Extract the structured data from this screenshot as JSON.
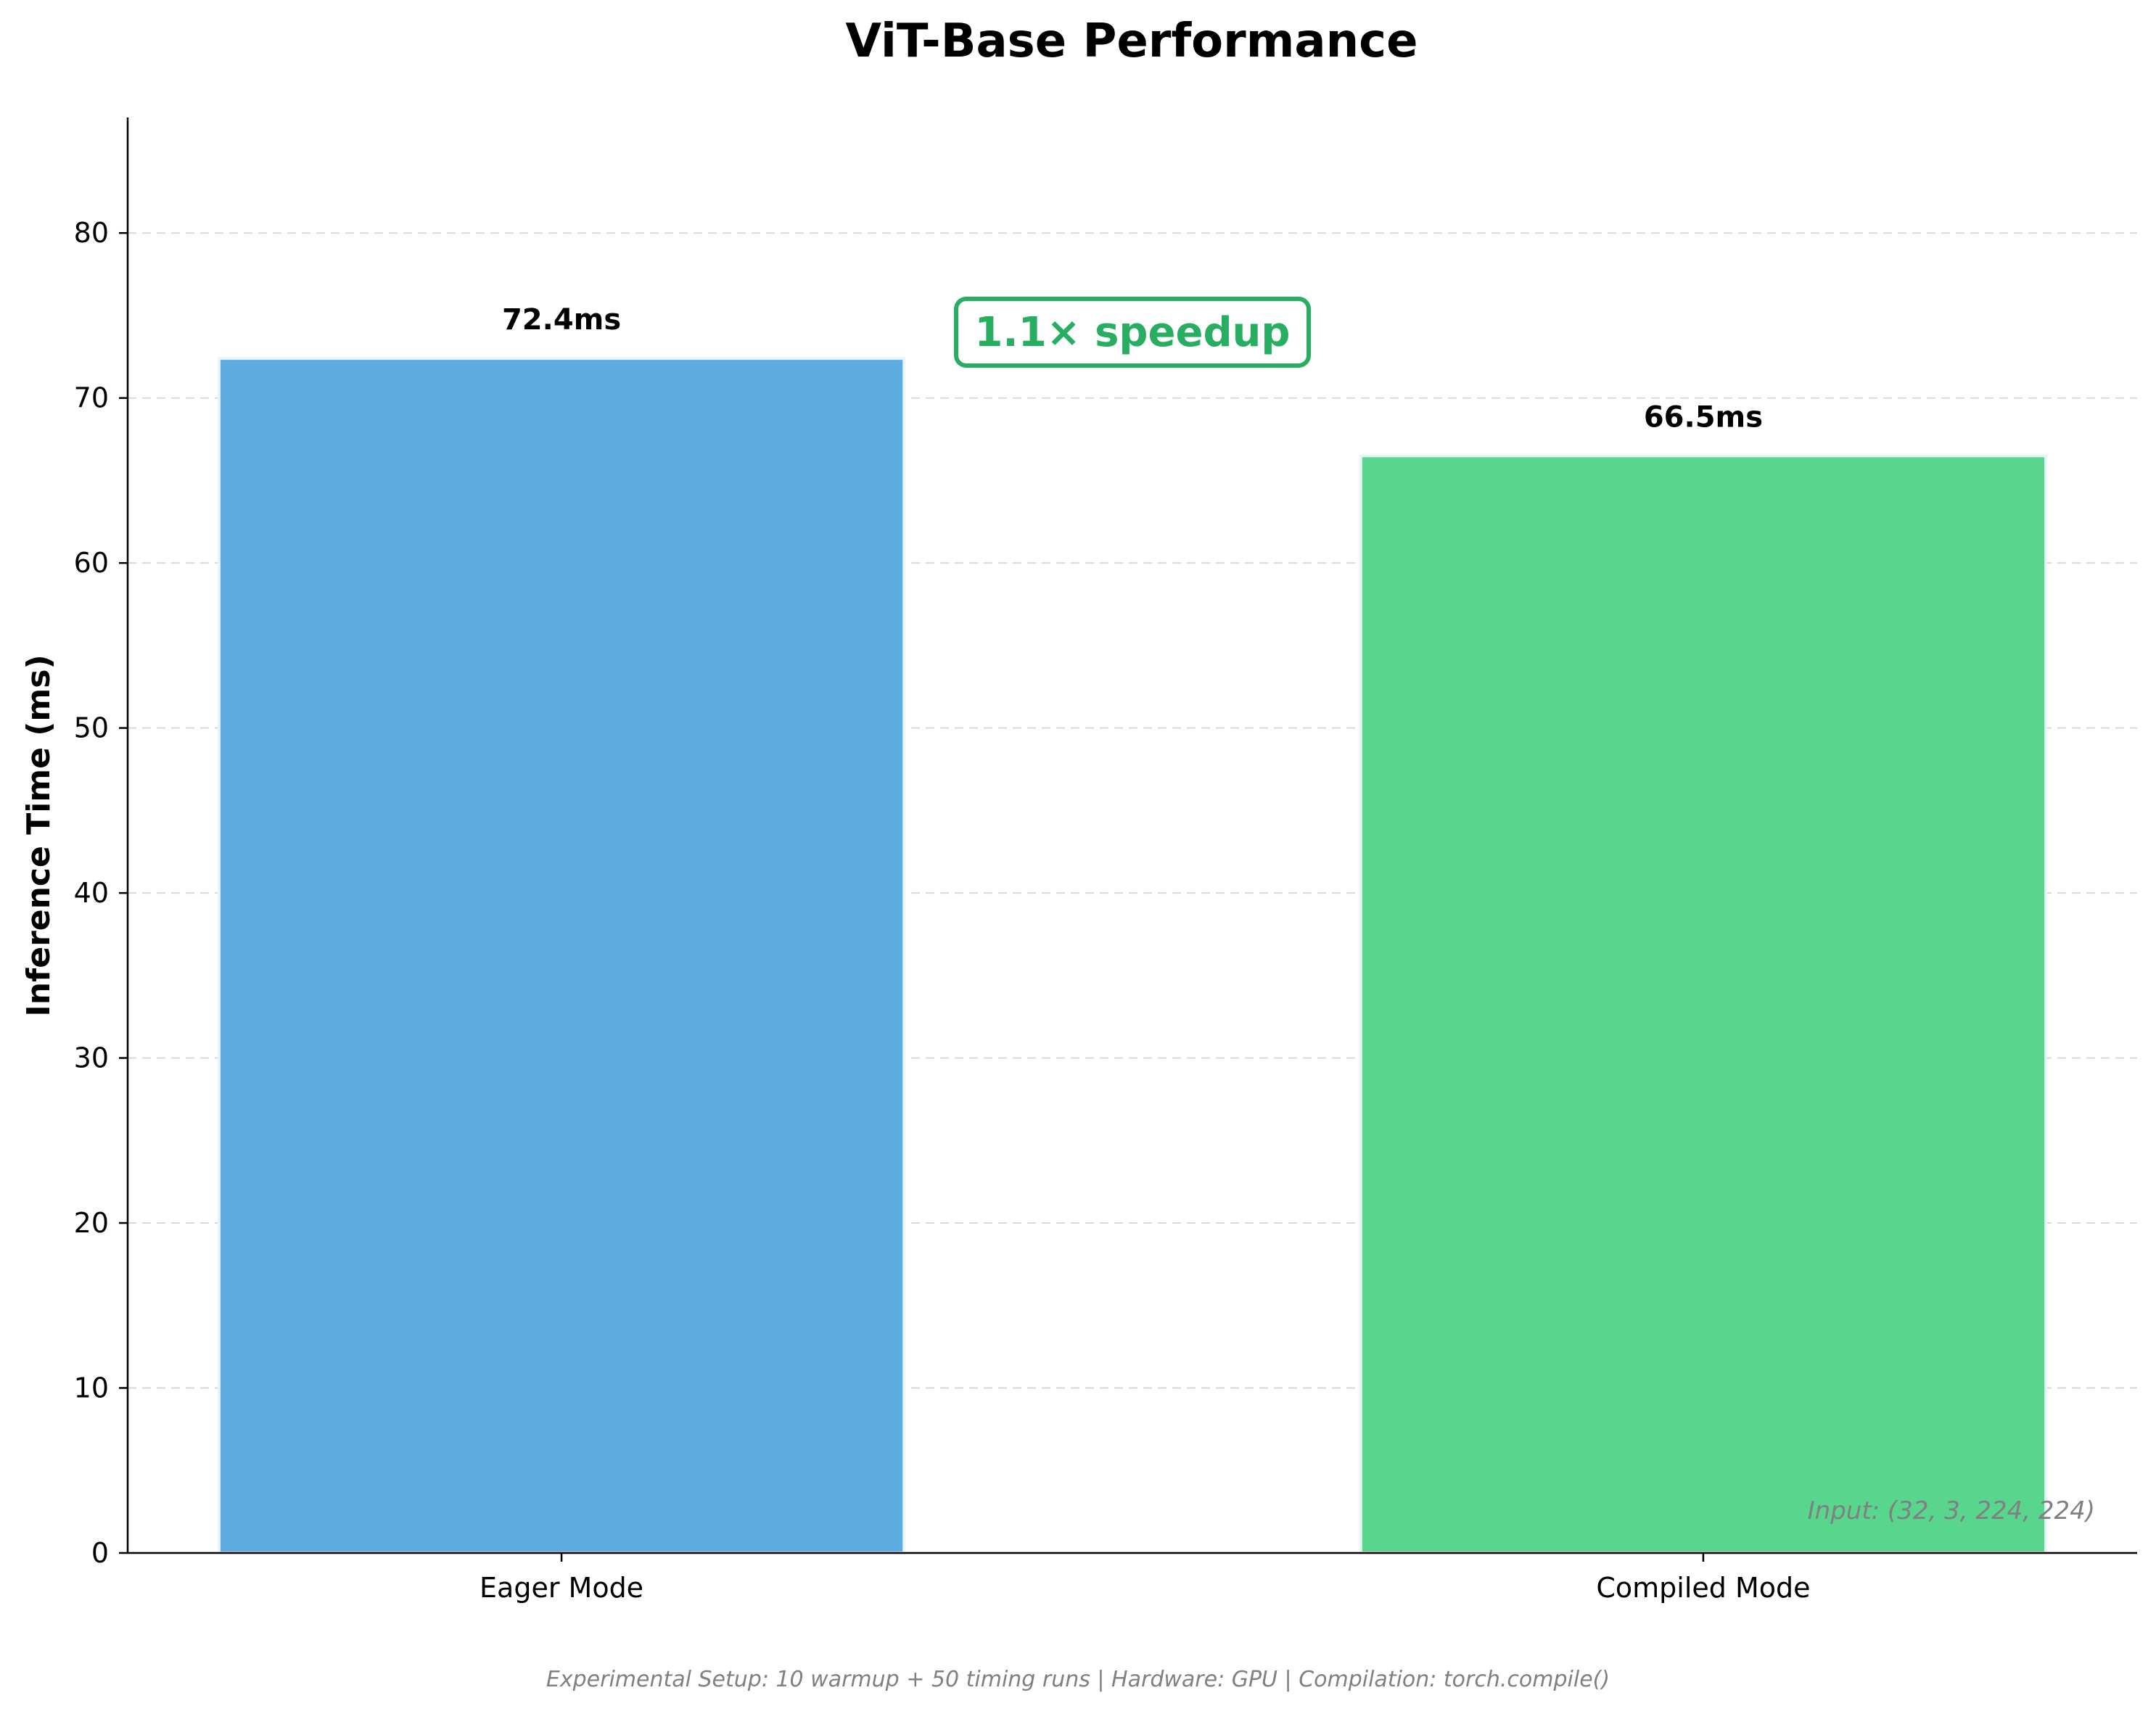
{
  "chart_data": {
    "type": "bar",
    "title": "ViT-Base Performance",
    "xlabel": "",
    "ylabel": "Inference Time (ms)",
    "categories": [
      "Eager Mode",
      "Compiled Mode"
    ],
    "values": [
      72.4,
      66.5
    ],
    "value_labels": [
      "72.4ms",
      "66.5ms"
    ],
    "colors": [
      "#5dade2",
      "#58d68d"
    ],
    "ylim": [
      0,
      87
    ],
    "yticks": [
      0,
      10,
      20,
      30,
      40,
      50,
      60,
      70,
      80
    ],
    "grid": true,
    "legend": "none",
    "annotations": {
      "speedup": "1.1× speedup",
      "speedup_color": "#27ae60",
      "input_note": "Input: (32, 3, 224, 224)"
    },
    "footer": "Experimental Setup: 10 warmup + 50 timing runs | Hardware: GPU | Compilation: torch.compile()"
  }
}
